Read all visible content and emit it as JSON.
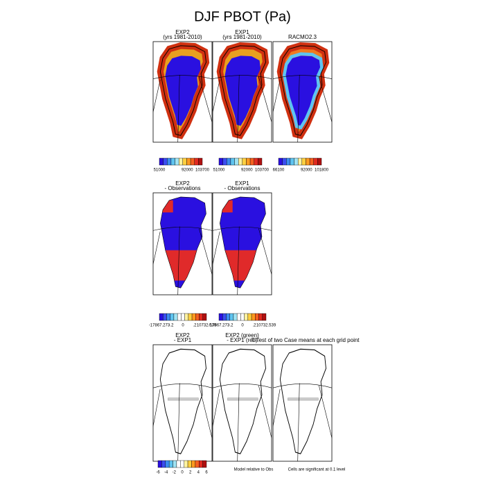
{
  "title": "DJF PBOT (Pa)",
  "rows": [
    {
      "panels": [
        {
          "title": [
            "EXP2",
            "(yrs 1981-2010)"
          ]
        },
        {
          "title": [
            "EXP1",
            "(yrs 1981-2010)"
          ]
        },
        {
          "title": [
            "RACMO2.3"
          ]
        }
      ],
      "colorbars": [
        {
          "labels": [
            "51000",
            "92000",
            "103700"
          ]
        },
        {
          "labels": [
            "51000",
            "92000",
            "103700"
          ]
        },
        {
          "labels": [
            "66100",
            "92000",
            "101800"
          ]
        }
      ]
    },
    {
      "panels": [
        {
          "title": [
            "EXP2",
            "- Observations"
          ]
        },
        {
          "title": [
            "EXP1",
            "- Observations"
          ]
        }
      ],
      "colorbars": [
        {
          "labels": [
            "-17867.273",
            "-.2",
            "0",
            ".2",
            "10732.539"
          ]
        },
        {
          "labels": [
            "-17867.273",
            "-.2",
            "0",
            ".2",
            "10732.539"
          ]
        }
      ]
    },
    {
      "panels": [
        {
          "title": [
            "EXP2",
            "- EXP1"
          ]
        },
        {
          "title": [
            "EXP2 (green)",
            "- EXP1 (red)"
          ]
        },
        {
          "title": [
            "T-Test of two Case means at each grid point"
          ]
        }
      ],
      "colorbars": [
        {
          "labels": [
            "-6",
            "-4",
            "-2",
            "0",
            "2",
            "4",
            "6"
          ]
        }
      ],
      "notes": [
        "Model relative to Obs",
        "Cells are significant at 0.1 level"
      ]
    }
  ]
}
